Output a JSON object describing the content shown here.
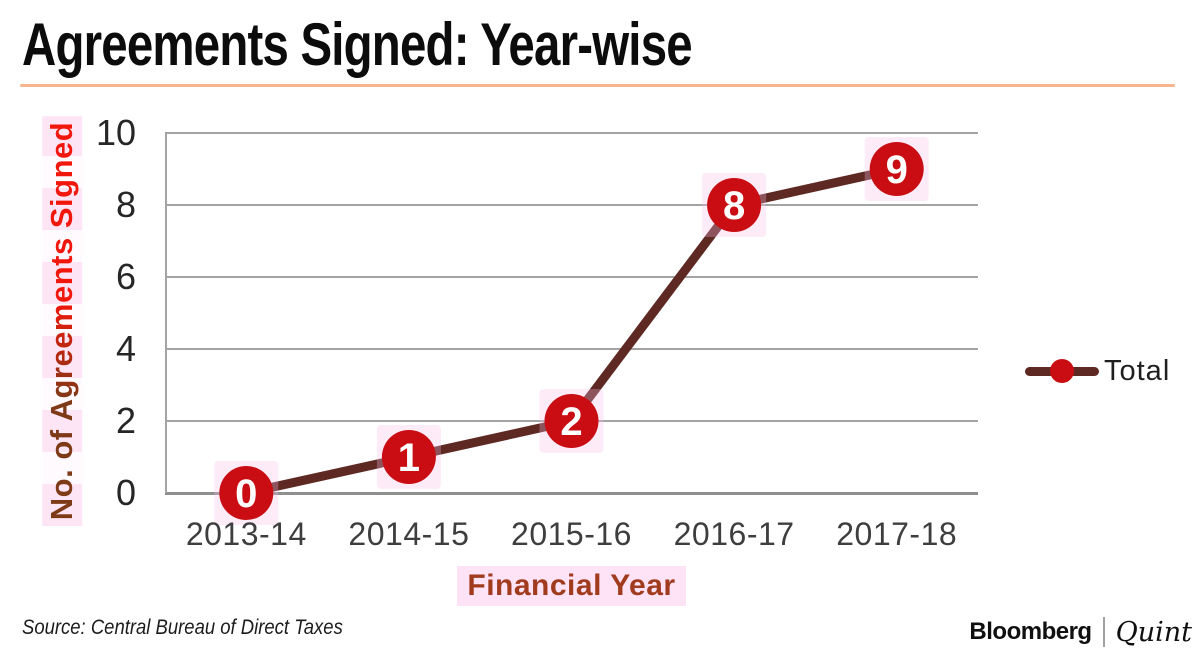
{
  "header": {
    "title": "Agreements Signed: Year-wise"
  },
  "chart_data": {
    "type": "line",
    "title": "Agreements Signed: Year-wise",
    "categories": [
      "2013-14",
      "2014-15",
      "2015-16",
      "2016-17",
      "2017-18"
    ],
    "series": [
      {
        "name": "Total",
        "values": [
          0,
          1,
          2,
          8,
          9
        ]
      }
    ],
    "xlabel": "Financial Year",
    "ylabel": "No. of Agreements Signed",
    "ylim": [
      0,
      10
    ],
    "yticks": [
      0,
      2,
      4,
      6,
      8,
      10
    ],
    "grid": true,
    "data_labels": true,
    "legend_position": "middle-right"
  },
  "legend": {
    "label": "Total"
  },
  "colors": {
    "accent_rule": "#f9b68e",
    "marker_red": "#c90d13",
    "line_maroon": "#5e2823",
    "grid_gray": "#a4a4a4",
    "axis_line_gray": "#8f8f8f",
    "ytick_text": "#262626",
    "xtick_text": "#3e3e3e",
    "xlabel_brown": "#a03b1e",
    "ylabel_dark": "#7e3916",
    "ylabel_red": "#f2170c",
    "data_label_text": "#ffffff",
    "highlight_pink": "#fcbee8"
  },
  "footer": {
    "source": "Source: Central Bureau of Direct Taxes",
    "brand": {
      "bloomberg": "Bloomberg",
      "divider": "|",
      "quint": "Quint"
    }
  }
}
